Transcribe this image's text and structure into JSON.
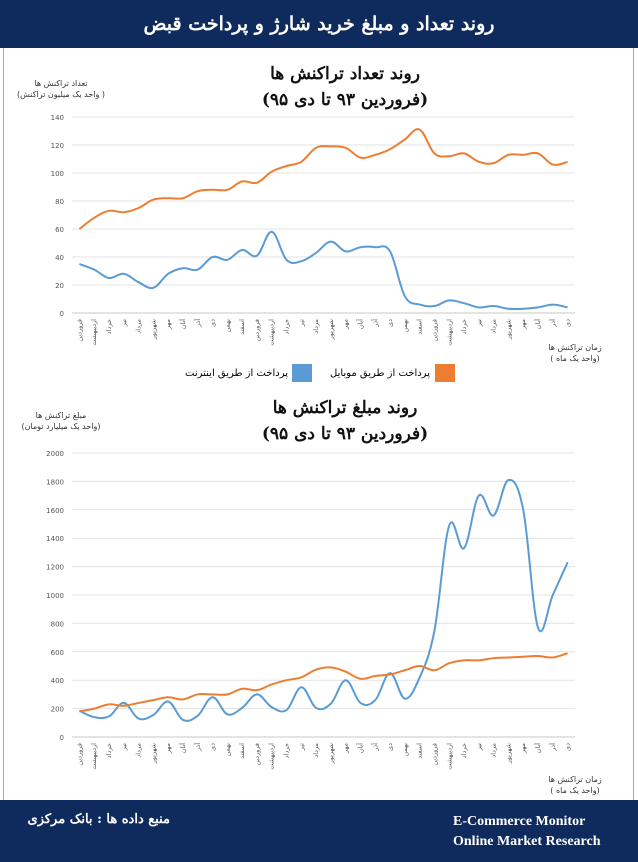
{
  "header": {
    "title": "روند تعداد و مبلغ خرید شارژ و پرداخت قبض"
  },
  "footer": {
    "source": "منبع داده ها : بانک مرکزی",
    "brand_line1": "E-Commerce Monitor",
    "brand_line2": "Online Market Research"
  },
  "colors": {
    "internet": "#5b9bd5",
    "mobile": "#ed7d31",
    "header_bg": "#0f2a5c",
    "axis_text": "#555555",
    "grid": "#e3e3e3"
  },
  "legend": {
    "mobile": "پرداخت از طریق موبایل",
    "internet": "پرداخت از طریق اینترنت"
  },
  "chart_data": [
    {
      "type": "line",
      "title_line1": "روند تعداد تراکنش ها",
      "title_line2": "(فروردین ۹۳ تا دی ۹۵)",
      "ylabel_line1": "تعداد تراکنش ها",
      "ylabel_line2": "( واحد یک میلیون تراکنش)",
      "xlabel_line1": "زمان تراکنش ها",
      "xlabel_line2": "(واحد یک ماه )",
      "ylim": [
        0,
        140
      ],
      "yticks": [
        "0",
        "20",
        "40",
        "60",
        "80",
        "100",
        "120",
        "140"
      ],
      "categories": [
        "فروردین",
        "اردیبهشت",
        "خرداد",
        "تیر",
        "مرداد",
        "شهریور",
        "مهر",
        "آبان",
        "آذر",
        "دی",
        "بهمن",
        "اسفند",
        "فروردین",
        "اردیبهشت",
        "خرداد",
        "تیر",
        "مرداد",
        "شهریور",
        "مهر",
        "آبان",
        "آذر",
        "دی",
        "بهمن",
        "اسفند",
        "فروردین",
        "اردیبهشت",
        "خرداد",
        "تیر",
        "مرداد",
        "شهریور",
        "مهر",
        "آبان",
        "آذر",
        "دی"
      ],
      "series": [
        {
          "name": "پرداخت از طریق اینترنت",
          "values": [
            35,
            31,
            25,
            28,
            22,
            18,
            28,
            32,
            31,
            40,
            38,
            45,
            41,
            58,
            38,
            37,
            43,
            51,
            44,
            47,
            47,
            44,
            12,
            6,
            5,
            9,
            7,
            4,
            5,
            3,
            3,
            4,
            6,
            4
          ]
        },
        {
          "name": "پرداخت از طریق موبایل",
          "values": [
            60,
            68,
            73,
            72,
            75,
            81,
            82,
            82,
            87,
            88,
            88,
            94,
            93,
            101,
            105,
            108,
            118,
            119,
            118,
            111,
            113,
            117,
            124,
            131,
            114,
            112,
            114,
            108,
            107,
            113,
            113,
            114,
            106,
            108
          ]
        }
      ]
    },
    {
      "type": "line",
      "title_line1": "روند مبلغ تراکنش ها",
      "title_line2": "(فروردین ۹۳ تا دی ۹۵)",
      "ylabel_line1": "مبلغ تراکنش ها",
      "ylabel_line2": "(واحد یک میلیارد تومان)",
      "xlabel_line1": "زمان تراکنش ها",
      "xlabel_line2": "(واحد یک ماه )",
      "ylim": [
        0,
        2000
      ],
      "yticks": [
        "0",
        "200",
        "400",
        "600",
        "800",
        "1000",
        "1200",
        "1400",
        "1600",
        "1800",
        "2000"
      ],
      "categories": [
        "فروردین",
        "اردیبهشت",
        "خرداد",
        "تیر",
        "مرداد",
        "شهریور",
        "مهر",
        "آبان",
        "آذر",
        "دی",
        "بهمن",
        "اسفند",
        "فروردین",
        "اردیبهشت",
        "خرداد",
        "تیر",
        "مرداد",
        "شهریور",
        "مهر",
        "آبان",
        "آذر",
        "دی",
        "بهمن",
        "اسفند",
        "فروردین",
        "اردیبهشت",
        "خرداد",
        "تیر",
        "مرداد",
        "شهریور",
        "مهر",
        "آبان",
        "آذر",
        "دی"
      ],
      "series": [
        {
          "name": "پرداخت از طریق اینترنت",
          "values": [
            185,
            140,
            145,
            240,
            130,
            155,
            250,
            120,
            150,
            280,
            160,
            205,
            300,
            210,
            190,
            350,
            205,
            235,
            400,
            240,
            260,
            450,
            270,
            420,
            750,
            1490,
            1330,
            1700,
            1560,
            1810,
            1600,
            770,
            1000,
            1230
          ]
        },
        {
          "name": "پرداخت از طریق موبایل",
          "values": [
            180,
            200,
            230,
            220,
            240,
            260,
            280,
            265,
            300,
            300,
            300,
            340,
            330,
            370,
            400,
            420,
            475,
            490,
            460,
            410,
            430,
            440,
            470,
            500,
            470,
            520,
            540,
            540,
            555,
            560,
            565,
            570,
            560,
            590
          ]
        }
      ]
    }
  ]
}
